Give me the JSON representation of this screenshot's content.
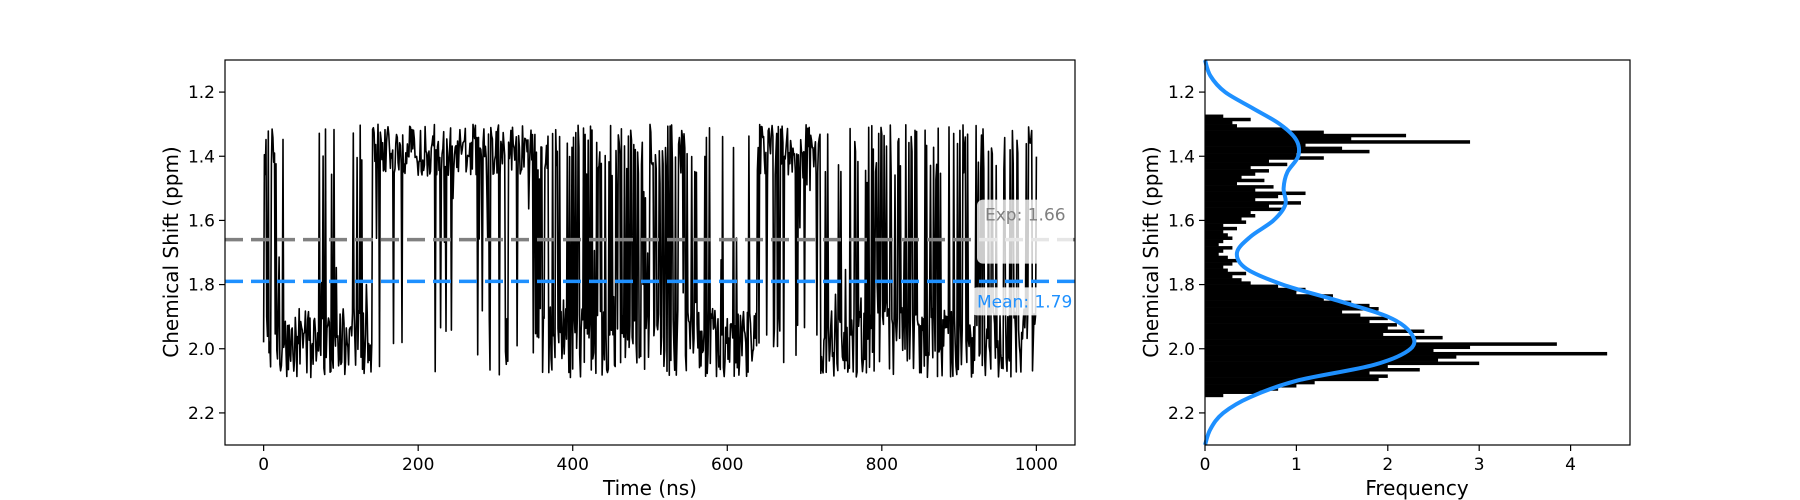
{
  "colors": {
    "trace": "#000000",
    "experimental": "#808080",
    "mean": "#1e90ff",
    "histogram": "#000000",
    "density": "#1e90ff"
  },
  "chart_data": [
    {
      "type": "line",
      "title": "",
      "xlabel": "Time (ns)",
      "ylabel": "Chemical Shift (ppm)",
      "xlim": [
        -50,
        1050
      ],
      "ylim": [
        2.3,
        1.1
      ],
      "y_inverted": true,
      "xticks": [
        0,
        200,
        400,
        600,
        800,
        1000
      ],
      "xtick_labels": [
        "0",
        "200",
        "400",
        "600",
        "800",
        "1000"
      ],
      "yticks": [
        1.2,
        1.4,
        1.6,
        1.8,
        2.0,
        2.2
      ],
      "ytick_labels": [
        "1.2",
        "1.4",
        "1.6",
        "1.8",
        "2.0",
        "2.2"
      ],
      "grid": false,
      "series": [
        {
          "segments": [
            {
              "x": [
                0,
                20
              ],
              "state": "upper-mixed"
            },
            {
              "x": [
                20,
                140
              ],
              "state": "lower"
            },
            {
              "x": [
                140,
                360
              ],
              "state": "upper"
            },
            {
              "x": [
                360,
                560
              ],
              "state": "mixed"
            },
            {
              "x": [
                560,
                640
              ],
              "state": "lower"
            },
            {
              "x": [
                640,
                720
              ],
              "state": "upper"
            },
            {
              "x": [
                720,
                1000
              ],
              "state": "lower-mixed"
            }
          ],
          "y_range": [
            1.27,
            2.15
          ]
        }
      ],
      "reference_lines": [
        {
          "label": "Exp: 1.66",
          "y": 1.66,
          "style": "dashed",
          "color": "#808080"
        },
        {
          "label": "Mean: 1.79",
          "y": 1.79,
          "style": "dashed",
          "color": "#1e90ff"
        }
      ]
    },
    {
      "type": "bar",
      "orientation": "horizontal",
      "title": "",
      "xlabel": "Frequency",
      "ylabel": "Chemical Shift (ppm)",
      "xlim": [
        0,
        4.65
      ],
      "ylim": [
        2.3,
        1.1
      ],
      "y_inverted": true,
      "xticks": [
        0,
        1,
        2,
        3,
        4
      ],
      "xtick_labels": [
        "0",
        "1",
        "2",
        "3",
        "4"
      ],
      "yticks": [
        1.2,
        1.4,
        1.6,
        1.8,
        2.0,
        2.2
      ],
      "ytick_labels": [
        "1.2",
        "1.4",
        "1.6",
        "1.8",
        "2.0",
        "2.2"
      ],
      "grid": false,
      "histogram": {
        "bin_edges": [
          1.27,
          1.28,
          1.29,
          1.3,
          1.31,
          1.32,
          1.33,
          1.34,
          1.35,
          1.36,
          1.37,
          1.38,
          1.39,
          1.4,
          1.41,
          1.42,
          1.43,
          1.44,
          1.45,
          1.46,
          1.47,
          1.48,
          1.49,
          1.5,
          1.51,
          1.52,
          1.53,
          1.54,
          1.55,
          1.56,
          1.57,
          1.58,
          1.59,
          1.6,
          1.61,
          1.62,
          1.63,
          1.64,
          1.65,
          1.66,
          1.67,
          1.68,
          1.69,
          1.7,
          1.71,
          1.72,
          1.73,
          1.74,
          1.75,
          1.76,
          1.77,
          1.78,
          1.79,
          1.8,
          1.81,
          1.82,
          1.83,
          1.84,
          1.85,
          1.86,
          1.87,
          1.88,
          1.89,
          1.9,
          1.91,
          1.92,
          1.93,
          1.94,
          1.95,
          1.96,
          1.97,
          1.98,
          1.99,
          2.0,
          2.01,
          2.02,
          2.03,
          2.04,
          2.05,
          2.06,
          2.07,
          2.08,
          2.09,
          2.1,
          2.11,
          2.12,
          2.13,
          2.14,
          2.15
        ],
        "counts": [
          0.2,
          0.5,
          0.3,
          0.35,
          0.9,
          1.3,
          2.2,
          1.6,
          2.9,
          1.1,
          1.5,
          1.8,
          1.0,
          1.3,
          0.7,
          0.9,
          0.5,
          0.7,
          0.55,
          0.4,
          0.65,
          0.35,
          0.75,
          0.55,
          1.1,
          0.8,
          0.55,
          1.05,
          0.7,
          0.85,
          0.5,
          0.55,
          0.4,
          0.45,
          0.2,
          0.35,
          0.2,
          0.25,
          0.3,
          0.2,
          0.15,
          0.3,
          0.2,
          0.15,
          0.25,
          0.35,
          0.3,
          0.2,
          0.25,
          0.45,
          0.3,
          0.4,
          0.5,
          0.8,
          1.1,
          1.0,
          1.4,
          1.3,
          1.6,
          1.8,
          1.9,
          1.5,
          1.7,
          2.0,
          1.8,
          2.1,
          2.0,
          2.4,
          1.95,
          2.6,
          2.3,
          3.85,
          2.9,
          2.5,
          4.4,
          2.75,
          2.55,
          3.0,
          2.0,
          2.35,
          1.8,
          2.0,
          1.9,
          1.2,
          1.0,
          0.8,
          0.6,
          0.2
        ]
      },
      "density_curve": {
        "y": [
          1.1,
          1.15,
          1.2,
          1.25,
          1.3,
          1.35,
          1.4,
          1.45,
          1.5,
          1.55,
          1.6,
          1.65,
          1.7,
          1.75,
          1.8,
          1.85,
          1.9,
          1.95,
          2.0,
          2.05,
          2.1,
          2.15,
          2.2,
          2.25,
          2.3
        ],
        "x": [
          0.0,
          0.06,
          0.22,
          0.52,
          0.82,
          1.0,
          1.02,
          0.9,
          0.86,
          0.88,
          0.75,
          0.5,
          0.35,
          0.45,
          0.85,
          1.45,
          2.0,
          2.25,
          2.25,
          1.85,
          1.0,
          0.5,
          0.2,
          0.06,
          0.0
        ],
        "color": "#1e90ff"
      }
    }
  ]
}
